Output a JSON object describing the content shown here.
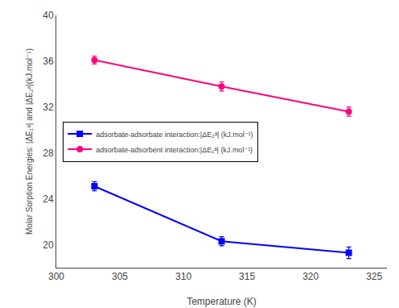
{
  "chart_data": {
    "type": "line",
    "xlabel": "Temperature (K)",
    "ylabel": "Molar Sorption Energies: |ΔE₁ᵃ| and |ΔE₂ᵃ|(kJ.mol⁻¹)",
    "x": [
      303,
      313,
      323
    ],
    "series": [
      {
        "name": "adsorbate-adsorbate interaction:|ΔE₂ᵃ| (kJ.mol⁻¹)",
        "color": "#0000ff",
        "marker": "square",
        "values": [
          25.1,
          20.3,
          19.3
        ],
        "errors": [
          0.4,
          0.4,
          0.5
        ]
      },
      {
        "name": "adsorbate-adsorbent interaction:|ΔE₁ᵃ| (kJ.mol⁻¹)",
        "color": "#ff0080",
        "marker": "circle",
        "values": [
          36.1,
          33.8,
          31.6
        ],
        "errors": [
          0.35,
          0.4,
          0.4
        ]
      }
    ],
    "xlim": [
      300,
      326
    ],
    "ylim": [
      18,
      40
    ],
    "xticks": [
      300,
      305,
      310,
      315,
      320,
      325
    ],
    "yticks": [
      20,
      24,
      28,
      32,
      36,
      40
    ],
    "grid": false,
    "legend": "center left"
  }
}
